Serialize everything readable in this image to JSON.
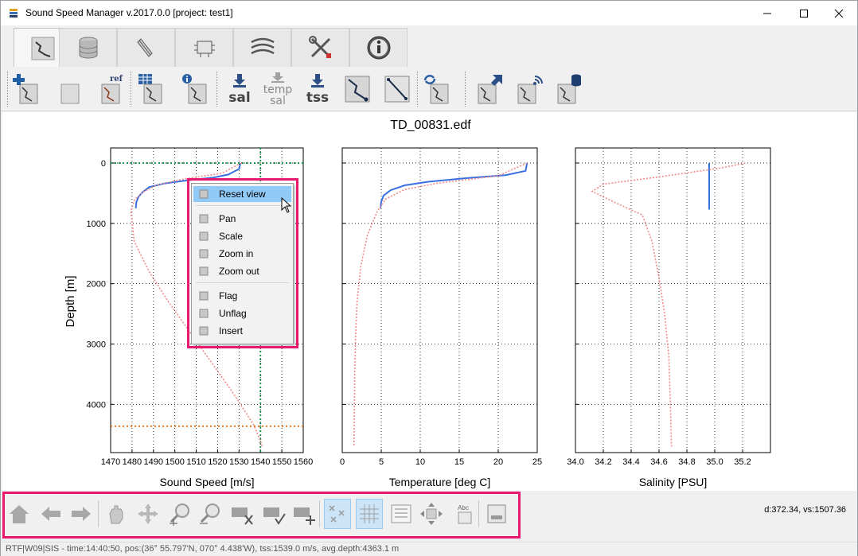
{
  "window": {
    "title": "Sound Speed Manager v.2017.0.0 [project: test1]",
    "controls": [
      "minimize-icon",
      "maximize-icon",
      "close-icon"
    ]
  },
  "tabs": [
    {
      "icon": "profile-editor-icon",
      "active": true
    },
    {
      "icon": "database-icon",
      "active": false
    },
    {
      "icon": "survey-data-icon",
      "active": false
    },
    {
      "icon": "server-icon",
      "active": false
    },
    {
      "icon": "refraction-icon",
      "active": false
    },
    {
      "icon": "tools-icon",
      "active": false
    },
    {
      "icon": "info-icon",
      "active": false
    }
  ],
  "toolbar": {
    "import_icon": "import-profile-icon",
    "clear_icon": "clear-data-icon",
    "ref_label": "ref",
    "sal_label": "sal",
    "temp_label": "temp",
    "temp_sal_label": "sal",
    "tss_label": "tss"
  },
  "figure": {
    "title": "TD_00831.edf",
    "ylabel": "Depth [m]"
  },
  "chart_data": [
    {
      "type": "line",
      "title": "",
      "xlabel": "Sound Speed [m/s]",
      "ylabel": "Depth [m]",
      "xlim": [
        1470,
        1560
      ],
      "ylim": [
        4800,
        -250
      ],
      "xticks": [
        "1470",
        "1480",
        "1490",
        "1500",
        "1510",
        "1520",
        "1530",
        "1540",
        "1550",
        "1560"
      ],
      "yticks": [
        "0",
        "1000",
        "2000",
        "3000",
        "4000"
      ],
      "grid": true,
      "series": [
        {
          "role": "processed",
          "color": "#3a6fe0",
          "style": "solid",
          "x": [
            1530.7,
            1530.0,
            1525,
            1518,
            1505,
            1495,
            1488,
            1485,
            1483,
            1482,
            1481.8
          ],
          "y": [
            0,
            100,
            190,
            240,
            290,
            340,
            400,
            480,
            560,
            650,
            750
          ]
        },
        {
          "role": "raw",
          "color": "#f08a8a",
          "style": "dotted",
          "x": [
            1531,
            1522,
            1505,
            1492,
            1485,
            1481,
            1479.5,
            1481,
            1488,
            1497,
            1507,
            1517,
            1527,
            1537,
            1541
          ],
          "y": [
            0,
            170,
            260,
            360,
            480,
            620,
            800,
            1300,
            1800,
            2300,
            2800,
            3300,
            3800,
            4350,
            4700
          ]
        }
      ],
      "reference_lines": [
        {
          "orientation": "vertical",
          "x": 1540,
          "color": "#1a9a50"
        },
        {
          "orientation": "horizontal",
          "y": 0,
          "color": "#1a9a50"
        },
        {
          "orientation": "horizontal",
          "y": 4363.1,
          "color": "#e07a1e"
        }
      ]
    },
    {
      "type": "line",
      "title": "",
      "xlabel": "Temperature [deg C]",
      "xlim": [
        0,
        25
      ],
      "ylim": [
        4800,
        -250
      ],
      "xticks": [
        "0",
        "5",
        "10",
        "15",
        "20",
        "25"
      ],
      "grid": true,
      "series": [
        {
          "role": "processed",
          "color": "#3a6fe0",
          "style": "solid",
          "x": [
            23.7,
            23.5,
            21,
            16,
            11,
            8,
            6.2,
            5.3,
            5.0,
            4.9
          ],
          "y": [
            0,
            130,
            200,
            250,
            310,
            370,
            450,
            540,
            640,
            750
          ]
        },
        {
          "role": "raw",
          "color": "#f08a8a",
          "style": "dotted",
          "x": [
            23.7,
            20,
            12,
            8,
            5.5,
            4.5,
            3.2,
            2.4,
            1.9,
            1.7,
            1.6,
            1.55,
            1.5
          ],
          "y": [
            0,
            210,
            340,
            440,
            600,
            800,
            1200,
            1700,
            2300,
            2900,
            3500,
            4100,
            4700
          ]
        }
      ]
    },
    {
      "type": "line",
      "title": "",
      "xlabel": "Salinity [PSU]",
      "xlim": [
        34.0,
        35.4
      ],
      "ylim": [
        4800,
        -250
      ],
      "xticks": [
        "34.0",
        "34.2",
        "34.4",
        "34.6",
        "34.8",
        "35.0",
        "35.2"
      ],
      "grid": true,
      "series": [
        {
          "role": "processed",
          "color": "#3a6fe0",
          "style": "solid",
          "x": [
            34.96,
            34.96
          ],
          "y": [
            0,
            770
          ]
        },
        {
          "role": "raw",
          "color": "#f08a8a",
          "style": "dotted",
          "x": [
            35.22,
            35.05,
            34.6,
            34.2,
            34.12,
            34.28,
            34.48,
            34.55,
            34.6,
            34.64,
            34.67,
            34.68,
            34.69
          ],
          "y": [
            0,
            80,
            230,
            350,
            470,
            650,
            860,
            1300,
            1900,
            2500,
            3200,
            3900,
            4700
          ]
        }
      ]
    }
  ],
  "context_menu": {
    "items": [
      {
        "label": "Reset view",
        "icon": "home-icon",
        "hover": true
      },
      {
        "label": "Pan",
        "icon": "pan-icon"
      },
      {
        "label": "Scale",
        "icon": "scale-icon"
      },
      {
        "label": "Zoom in",
        "icon": "zoom-in-icon"
      },
      {
        "label": "Zoom out",
        "icon": "zoom-out-icon"
      },
      {
        "label": "Flag",
        "icon": "flag-icon"
      },
      {
        "label": "Unflag",
        "icon": "unflag-icon"
      },
      {
        "label": "Insert",
        "icon": "insert-icon"
      }
    ]
  },
  "navbar": {
    "buttons": [
      "home-icon",
      "back-icon",
      "forward-icon",
      "pan-icon",
      "scale-icon",
      "zoom-in-icon",
      "zoom-out-icon",
      "flag-icon",
      "unflag-icon",
      "insert-icon",
      "flagged-visibility-icon",
      "grid-icon",
      "legend-icon",
      "auto-range-icon",
      "labels-icon",
      "export-icon"
    ],
    "checked": [
      "flagged-visibility-icon",
      "grid-icon"
    ],
    "coords": "d:372.34, vs:1507.36"
  },
  "statusbar": {
    "text": "RTF|W09|SIS  -  time:14:40:50, pos:(36° 55.797'N, 070° 4.438'W),  tss:1539.0 m/s,  avg.depth:4363.1 m"
  },
  "colors": {
    "processed": "#3a6fe0",
    "raw": "#f08a8a",
    "highlight": "#e8196e",
    "hover": "#91c9f7"
  }
}
